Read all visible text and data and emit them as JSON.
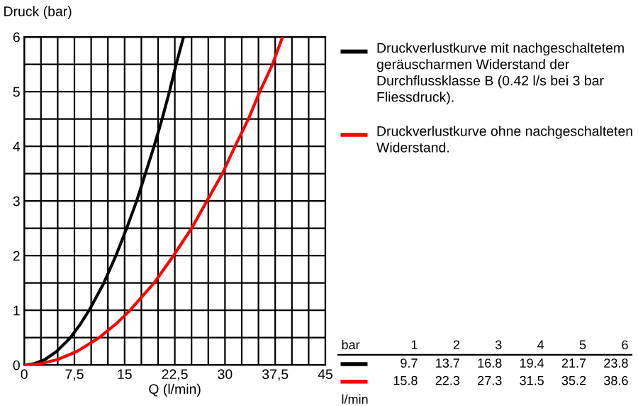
{
  "chart_data": {
    "type": "line",
    "xlabel": "Q (l/min)",
    "ylabel": "Druck (bar)",
    "xlim": [
      0,
      45
    ],
    "ylim": [
      0,
      6
    ],
    "xticks": [
      0,
      {
        "value": 2.5,
        "label": null
      },
      {
        "value": 5,
        "label": null
      },
      {
        "value": 7.5,
        "label": "7,5"
      },
      {
        "value": 10,
        "label": null
      },
      {
        "value": 12.5,
        "label": null
      },
      15,
      {
        "value": 17.5,
        "label": null
      },
      {
        "value": 20,
        "label": null
      },
      {
        "value": 22.5,
        "label": "22,5"
      },
      {
        "value": 25,
        "label": null
      },
      {
        "value": 27.5,
        "label": null
      },
      30,
      {
        "value": 32.5,
        "label": null
      },
      {
        "value": 35,
        "label": null
      },
      {
        "value": 37.5,
        "label": "37,5"
      },
      {
        "value": 40,
        "label": null
      },
      {
        "value": 42.5,
        "label": null
      },
      45
    ],
    "yticks": [
      0,
      {
        "value": 0.5,
        "label": null
      },
      1,
      {
        "value": 1.5,
        "label": null
      },
      2,
      {
        "value": 2.5,
        "label": null
      },
      3,
      {
        "value": 3.5,
        "label": null
      },
      4,
      {
        "value": 4.5,
        "label": null
      },
      5,
      {
        "value": 5.5,
        "label": null
      },
      6
    ],
    "grid": true,
    "legend": "right",
    "marker": "none",
    "line_style": "solid",
    "series": [
      {
        "name": "Druckverlustkurve mit nachgeschaltetem geräuscharmen Widerstand der Durchflussklasse B (0.42 l/s bei 3 bar Fliessdruck).",
        "color": "#000000",
        "x": [
          0,
          1.5,
          3.1,
          4.85,
          6.9,
          8.4,
          9.7,
          11.9,
          13.7,
          15.3,
          16.8,
          18.1,
          19.4,
          20.6,
          21.7,
          22.7,
          23.8
        ],
        "values": [
          0,
          0.025,
          0.1,
          0.25,
          0.5,
          0.75,
          1,
          1.5,
          2,
          2.5,
          3,
          3.5,
          4,
          4.5,
          5,
          5.5,
          6
        ]
      },
      {
        "name": "Druckverlustkurve ohne nachgeschalteten Widerstand.",
        "color": "#ff0000",
        "x": [
          0,
          2.5,
          5,
          7.9,
          11.2,
          13.7,
          15.8,
          19.4,
          22.3,
          25,
          27.3,
          29.6,
          31.5,
          33.5,
          35.2,
          37.1,
          38.6
        ],
        "values": [
          0,
          0.025,
          0.1,
          0.25,
          0.5,
          0.75,
          1,
          1.5,
          2,
          2.5,
          3,
          3.5,
          4,
          4.5,
          5,
          5.5,
          6
        ]
      }
    ],
    "annotations": [
      "bar",
      "1",
      "2",
      "3",
      "4",
      "5",
      "6",
      "9.7",
      "13.7",
      "16.8",
      "19.4",
      "21.7",
      "23.8",
      "15.8",
      "22.3",
      "27.3",
      "31.5",
      "35.2",
      "38.6",
      "l/min"
    ]
  }
}
